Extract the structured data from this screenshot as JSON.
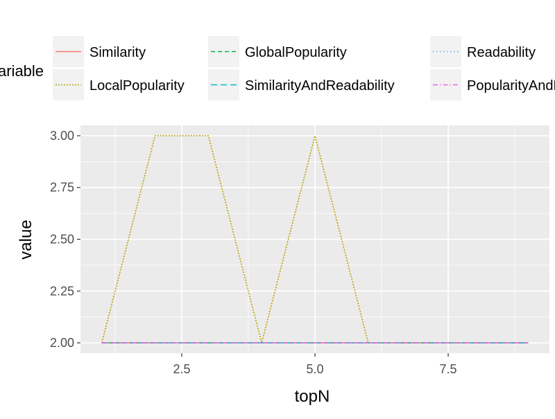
{
  "chart_data": {
    "type": "line",
    "title": "",
    "xlabel": "topN",
    "ylabel": "value",
    "legend_title": "variable",
    "legend_position": "top",
    "xlim": [
      0.6,
      9.4
    ],
    "ylim": [
      1.95,
      3.05
    ],
    "x_ticks": [
      2.5,
      5.0,
      7.5
    ],
    "x_tick_labels": [
      "2.5",
      "5.0",
      "7.5"
    ],
    "y_ticks": [
      2.0,
      2.25,
      2.5,
      2.75,
      3.0
    ],
    "y_tick_labels": [
      "2.00",
      "2.25",
      "2.50",
      "2.75",
      "3.00"
    ],
    "grid": true,
    "x": [
      1,
      2,
      3,
      4,
      5,
      6,
      7,
      8,
      9
    ],
    "series": [
      {
        "name": "Similarity",
        "color": "#F8766D",
        "dash": "solid",
        "values": [
          2,
          2,
          2,
          2,
          2,
          2,
          2,
          2,
          2
        ]
      },
      {
        "name": "LocalPopularity",
        "color": "#B79F00",
        "dash": "dotted",
        "values": [
          2,
          3,
          3,
          2,
          3,
          2,
          2,
          2,
          2
        ]
      },
      {
        "name": "GlobalPopularity",
        "color": "#00BA38",
        "dash": "dashed",
        "values": [
          2,
          2,
          2,
          2,
          2,
          2,
          2,
          2,
          2
        ]
      },
      {
        "name": "SimilarityAndReadability",
        "color": "#00BFC4",
        "dash": "longdash",
        "values": [
          2,
          2,
          2,
          2,
          2,
          2,
          2,
          2,
          2
        ]
      },
      {
        "name": "Readability",
        "color": "#619CFF",
        "dash": "dotted-fine",
        "values": [
          2,
          2,
          2,
          2,
          2,
          2,
          2,
          2,
          2
        ]
      },
      {
        "name": "PopularityAndReadability",
        "color": "#F564E3",
        "dash": "dotdash",
        "values": [
          2,
          2,
          2,
          2,
          2,
          2,
          2,
          2,
          2
        ]
      }
    ],
    "legend_layout": [
      [
        "Similarity",
        "GlobalPopularity",
        "Readability"
      ],
      [
        "LocalPopularity",
        "SimilarityAndReadability",
        "PopularityAndReadability"
      ]
    ]
  }
}
